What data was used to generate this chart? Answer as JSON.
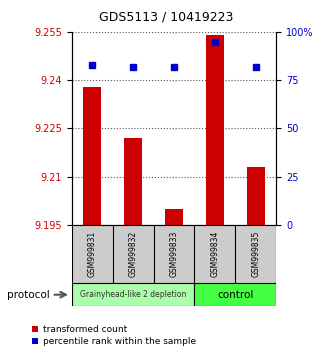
{
  "title": "GDS5113 / 10419223",
  "samples": [
    "GSM999831",
    "GSM999832",
    "GSM999833",
    "GSM999834",
    "GSM999835"
  ],
  "bar_values": [
    9.238,
    9.222,
    9.2,
    9.254,
    9.213
  ],
  "bar_base": 9.195,
  "percentile_values": [
    83,
    82,
    82,
    95,
    82
  ],
  "ylim_left": [
    9.195,
    9.255
  ],
  "ylim_right": [
    0,
    100
  ],
  "yticks_left": [
    9.195,
    9.21,
    9.225,
    9.24,
    9.255
  ],
  "yticks_right": [
    0,
    25,
    50,
    75,
    100
  ],
  "ytick_labels_left": [
    "9.195",
    "9.21",
    "9.225",
    "9.24",
    "9.255"
  ],
  "ytick_labels_right": [
    "0",
    "25",
    "50",
    "75",
    "100%"
  ],
  "bar_color": "#cc0000",
  "percentile_color": "#0000cc",
  "group0_label": "Grainyhead-like 2 depletion",
  "group0_color": "#aaffaa",
  "group0_n": 3,
  "group1_label": "control",
  "group1_color": "#44ff44",
  "group1_n": 2,
  "protocol_label": "protocol",
  "legend_bar_label": "transformed count",
  "legend_pct_label": "percentile rank within the sample",
  "grid_color": "#555555",
  "sample_box_color": "#cccccc",
  "background_color": "#ffffff",
  "title_fontsize": 9,
  "tick_fontsize": 7,
  "sample_fontsize": 5.5,
  "legend_fontsize": 6.5
}
